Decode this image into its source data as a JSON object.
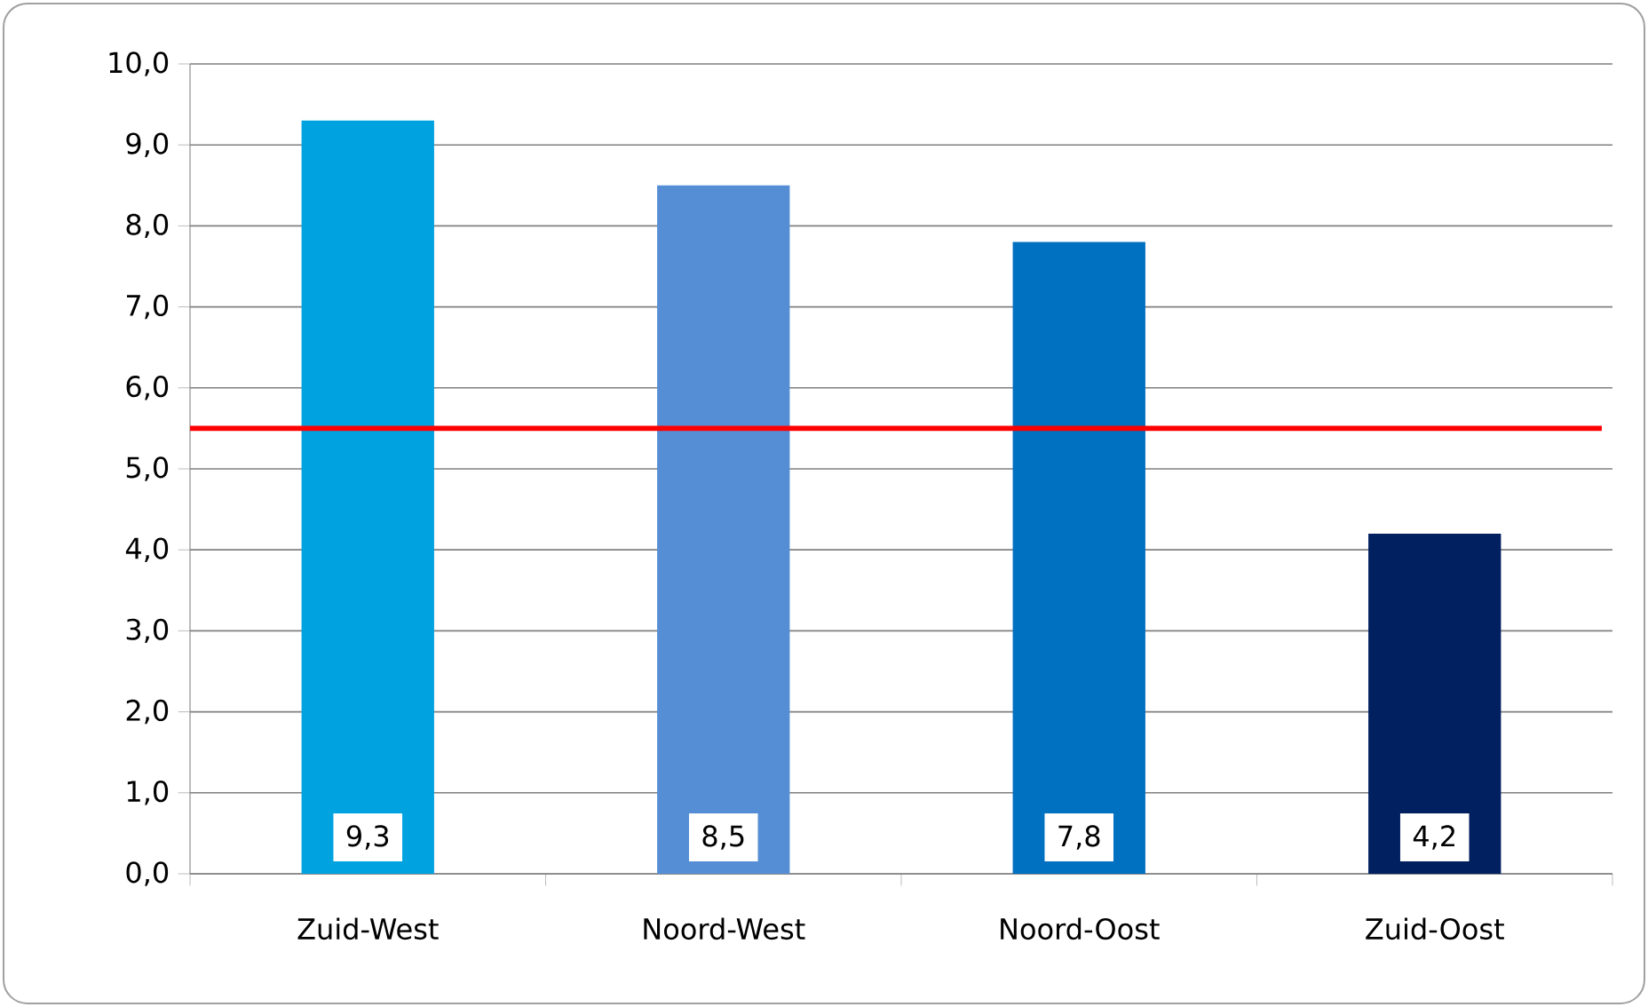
{
  "chart_data": {
    "type": "bar",
    "categories": [
      "Zuid-West",
      "Noord-West",
      "Noord-Oost",
      "Zuid-Oost"
    ],
    "values": [
      9.3,
      8.5,
      7.8,
      4.2
    ],
    "value_labels": [
      "9,3",
      "8,5",
      "7,8",
      "4,2"
    ],
    "colors": [
      "#00a3e0",
      "#558ed5",
      "#0070c0",
      "#002060"
    ],
    "ylim": [
      0,
      10
    ],
    "yticks": [
      {
        "value": 0,
        "label": "0,0"
      },
      {
        "value": 1,
        "label": "1,0"
      },
      {
        "value": 2,
        "label": "2,0"
      },
      {
        "value": 3,
        "label": "3,0"
      },
      {
        "value": 4,
        "label": "4,0"
      },
      {
        "value": 5,
        "label": "5,0"
      },
      {
        "value": 6,
        "label": "6,0"
      },
      {
        "value": 7,
        "label": "7,0"
      },
      {
        "value": 8,
        "label": "8,0"
      },
      {
        "value": 9,
        "label": "9,0"
      },
      {
        "value": 10,
        "label": "10,0"
      }
    ],
    "grid": "y",
    "ref_lines": [
      {
        "axis": "y",
        "value": 5.5,
        "color": "#ff0000"
      }
    ]
  }
}
